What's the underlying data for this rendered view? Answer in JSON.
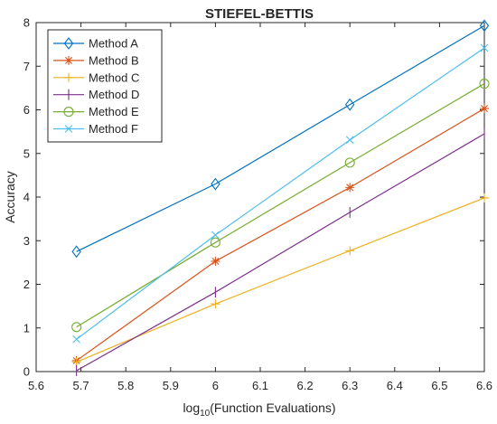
{
  "chart_data": {
    "type": "line",
    "title": "STIEFEL-BETTIS",
    "xlabel": "log",
    "xlabel_sub": "10",
    "xlabel_rest": "(Function Evaluations)",
    "ylabel": "Accuracy",
    "xlim": [
      5.6,
      6.6
    ],
    "ylim": [
      0,
      8
    ],
    "xticks": [
      "5.6",
      "5.7",
      "5.8",
      "5.9",
      "6",
      "6.1",
      "6.2",
      "6.3",
      "6.4",
      "6.5",
      "6.6"
    ],
    "yticks": [
      "0",
      "1",
      "2",
      "3",
      "4",
      "5",
      "6",
      "7",
      "8"
    ],
    "x": [
      5.69,
      6.0,
      6.3,
      6.6
    ],
    "grid": false,
    "legend_position": "top-left",
    "series": [
      {
        "name": "Method A",
        "values": [
          2.75,
          4.3,
          6.12,
          7.93
        ],
        "color": "#0072BD",
        "marker": "diamond"
      },
      {
        "name": "Method B",
        "values": [
          0.25,
          2.53,
          4.22,
          6.03
        ],
        "color": "#D95319",
        "marker": "asterisk"
      },
      {
        "name": "Method C",
        "values": [
          0.22,
          1.55,
          2.77,
          3.98
        ],
        "color": "#EDB120",
        "marker": "plus"
      },
      {
        "name": "Method D",
        "values": [
          0.02,
          1.82,
          3.65,
          5.45
        ],
        "color": "#7E2F8E",
        "marker": "vline"
      },
      {
        "name": "Method E",
        "values": [
          1.02,
          2.96,
          4.79,
          6.6
        ],
        "color": "#77AC30",
        "marker": "circle"
      },
      {
        "name": "Method F",
        "values": [
          0.74,
          3.13,
          5.31,
          7.42
        ],
        "color": "#4DBEEE",
        "marker": "x"
      }
    ]
  }
}
